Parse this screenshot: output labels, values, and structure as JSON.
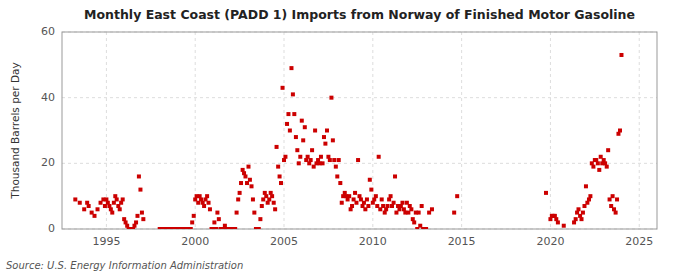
{
  "chart_data": {
    "type": "scatter",
    "title": "Monthly East Coast (PADD 1) Imports from Norway of Finished Motor Gasoline",
    "y_label": "Thousand Barrels per Day",
    "annotations": [
      "Source: U.S. Energy Information Administration"
    ],
    "color": "#cc0000",
    "marker": "square",
    "grid": true,
    "xlim": [
      1992.5,
      2026.0
    ],
    "xticks": [
      1995,
      2000,
      2005,
      2010,
      2015,
      2020,
      2025
    ],
    "ylim": [
      0,
      60
    ],
    "yticks": [
      0,
      20,
      40,
      60
    ],
    "x": [
      1993.25,
      1993.5,
      1993.75,
      1993.917,
      1994.0,
      1994.17,
      1994.33,
      1994.5,
      1994.67,
      1994.83,
      1994.917,
      1995.0,
      1995.08,
      1995.17,
      1995.25,
      1995.33,
      1995.42,
      1995.5,
      1995.58,
      1995.67,
      1995.75,
      1995.83,
      1995.917,
      1996.0,
      1996.08,
      1996.17,
      1996.25,
      1996.33,
      1996.42,
      1996.5,
      1996.58,
      1996.67,
      1996.75,
      1996.83,
      1996.917,
      1997.0,
      1997.08,
      1998.0,
      1998.08,
      1998.17,
      1998.25,
      1998.33,
      1998.42,
      1998.5,
      1998.58,
      1998.67,
      1998.75,
      1998.83,
      1998.917,
      1999.0,
      1999.08,
      1999.17,
      1999.25,
      1999.33,
      1999.42,
      1999.5,
      1999.58,
      1999.67,
      1999.75,
      1999.83,
      1999.917,
      2000.0,
      2000.08,
      2000.17,
      2000.25,
      2000.33,
      2000.42,
      2000.5,
      2000.58,
      2000.67,
      2000.75,
      2000.83,
      2000.917,
      2001.0,
      2001.08,
      2001.17,
      2001.25,
      2001.33,
      2001.42,
      2001.5,
      2001.58,
      2001.67,
      2001.75,
      2001.83,
      2001.917,
      2002.0,
      2002.08,
      2002.17,
      2002.25,
      2002.33,
      2002.42,
      2002.5,
      2002.58,
      2002.67,
      2002.75,
      2002.83,
      2002.917,
      2003.0,
      2003.08,
      2003.17,
      2003.25,
      2003.33,
      2003.42,
      2003.5,
      2003.58,
      2003.67,
      2003.75,
      2003.83,
      2003.917,
      2004.0,
      2004.08,
      2004.17,
      2004.25,
      2004.33,
      2004.42,
      2004.5,
      2004.58,
      2004.67,
      2004.75,
      2004.83,
      2004.917,
      2005.0,
      2005.08,
      2005.17,
      2005.25,
      2005.33,
      2005.42,
      2005.5,
      2005.58,
      2005.67,
      2005.75,
      2005.83,
      2005.917,
      2006.0,
      2006.08,
      2006.17,
      2006.25,
      2006.33,
      2006.42,
      2006.5,
      2006.58,
      2006.67,
      2006.75,
      2006.83,
      2006.917,
      2007.0,
      2007.08,
      2007.17,
      2007.25,
      2007.33,
      2007.42,
      2007.5,
      2007.58,
      2007.67,
      2007.75,
      2007.83,
      2007.917,
      2008.0,
      2008.08,
      2008.17,
      2008.25,
      2008.33,
      2008.42,
      2008.5,
      2008.58,
      2008.67,
      2008.75,
      2008.83,
      2008.917,
      2009.0,
      2009.08,
      2009.17,
      2009.25,
      2009.33,
      2009.42,
      2009.5,
      2009.58,
      2009.67,
      2009.75,
      2009.83,
      2009.917,
      2010.0,
      2010.08,
      2010.17,
      2010.25,
      2010.33,
      2010.42,
      2010.5,
      2010.58,
      2010.67,
      2010.75,
      2010.83,
      2010.917,
      2011.0,
      2011.08,
      2011.17,
      2011.25,
      2011.33,
      2011.42,
      2011.5,
      2011.58,
      2011.67,
      2011.75,
      2011.83,
      2011.917,
      2012.0,
      2012.08,
      2012.17,
      2012.25,
      2012.33,
      2012.42,
      2012.5,
      2012.58,
      2012.67,
      2012.75,
      2012.83,
      2012.917,
      2013.0,
      2013.17,
      2013.33,
      2014.58,
      2014.75,
      2019.75,
      2020.0,
      2020.08,
      2020.17,
      2020.25,
      2020.33,
      2020.42,
      2020.75,
      2021.33,
      2021.42,
      2021.5,
      2021.58,
      2021.67,
      2021.75,
      2021.83,
      2021.917,
      2022.0,
      2022.08,
      2022.17,
      2022.25,
      2022.33,
      2022.42,
      2022.5,
      2022.58,
      2022.67,
      2022.75,
      2022.83,
      2022.917,
      2023.0,
      2023.08,
      2023.17,
      2023.25,
      2023.33,
      2023.42,
      2023.5,
      2023.58,
      2023.67,
      2023.75,
      2023.83,
      2023.917,
      2024.0
    ],
    "values": [
      9,
      8,
      6,
      8,
      7,
      5,
      4,
      6,
      8,
      9,
      7,
      9,
      8,
      7,
      6,
      5,
      8,
      10,
      9,
      7,
      6,
      8,
      9,
      3,
      2,
      1,
      0,
      0,
      0,
      0,
      1,
      2,
      4,
      16,
      12,
      5,
      3,
      0,
      0,
      0,
      0,
      0,
      0,
      0,
      0,
      0,
      0,
      0,
      0,
      0,
      0,
      0,
      0,
      0,
      0,
      0,
      0,
      0,
      0,
      2,
      4,
      9,
      10,
      8,
      10,
      9,
      8,
      7,
      9,
      10,
      8,
      6,
      0,
      0,
      2,
      0,
      5,
      3,
      0,
      0,
      0,
      1,
      0,
      0,
      0,
      0,
      0,
      0,
      0,
      5,
      9,
      11,
      14,
      18,
      17,
      16,
      14,
      19,
      15,
      13,
      9,
      5,
      0,
      0,
      0,
      3,
      7,
      9,
      11,
      10,
      8,
      9,
      11,
      10,
      8,
      6,
      25,
      19,
      16,
      14,
      43,
      21,
      22,
      32,
      35,
      30,
      49,
      41,
      35,
      28,
      24,
      20,
      22,
      33,
      27,
      31,
      21,
      22,
      20,
      21,
      24,
      19,
      30,
      20,
      21,
      20,
      22,
      20,
      28,
      26,
      30,
      22,
      21,
      40,
      27,
      21,
      19,
      16,
      21,
      14,
      8,
      10,
      11,
      10,
      9,
      10,
      6,
      7,
      9,
      11,
      8,
      21,
      10,
      9,
      7,
      8,
      6,
      9,
      7,
      15,
      12,
      8,
      9,
      10,
      7,
      22,
      6,
      9,
      7,
      5,
      6,
      7,
      9,
      10,
      7,
      8,
      16,
      5,
      7,
      6,
      7,
      8,
      6,
      5,
      8,
      5,
      7,
      6,
      3,
      2,
      5,
      0,
      5,
      1,
      7,
      0,
      0,
      0,
      5,
      6,
      5,
      10,
      11,
      3,
      4,
      4,
      4,
      3,
      2,
      1,
      2,
      3,
      5,
      6,
      4,
      3,
      5,
      7,
      13,
      8,
      9,
      10,
      20,
      19,
      21,
      21,
      20,
      18,
      22,
      20,
      21,
      20,
      19,
      24,
      9,
      7,
      10,
      6,
      5,
      9,
      29,
      30,
      53
    ]
  }
}
